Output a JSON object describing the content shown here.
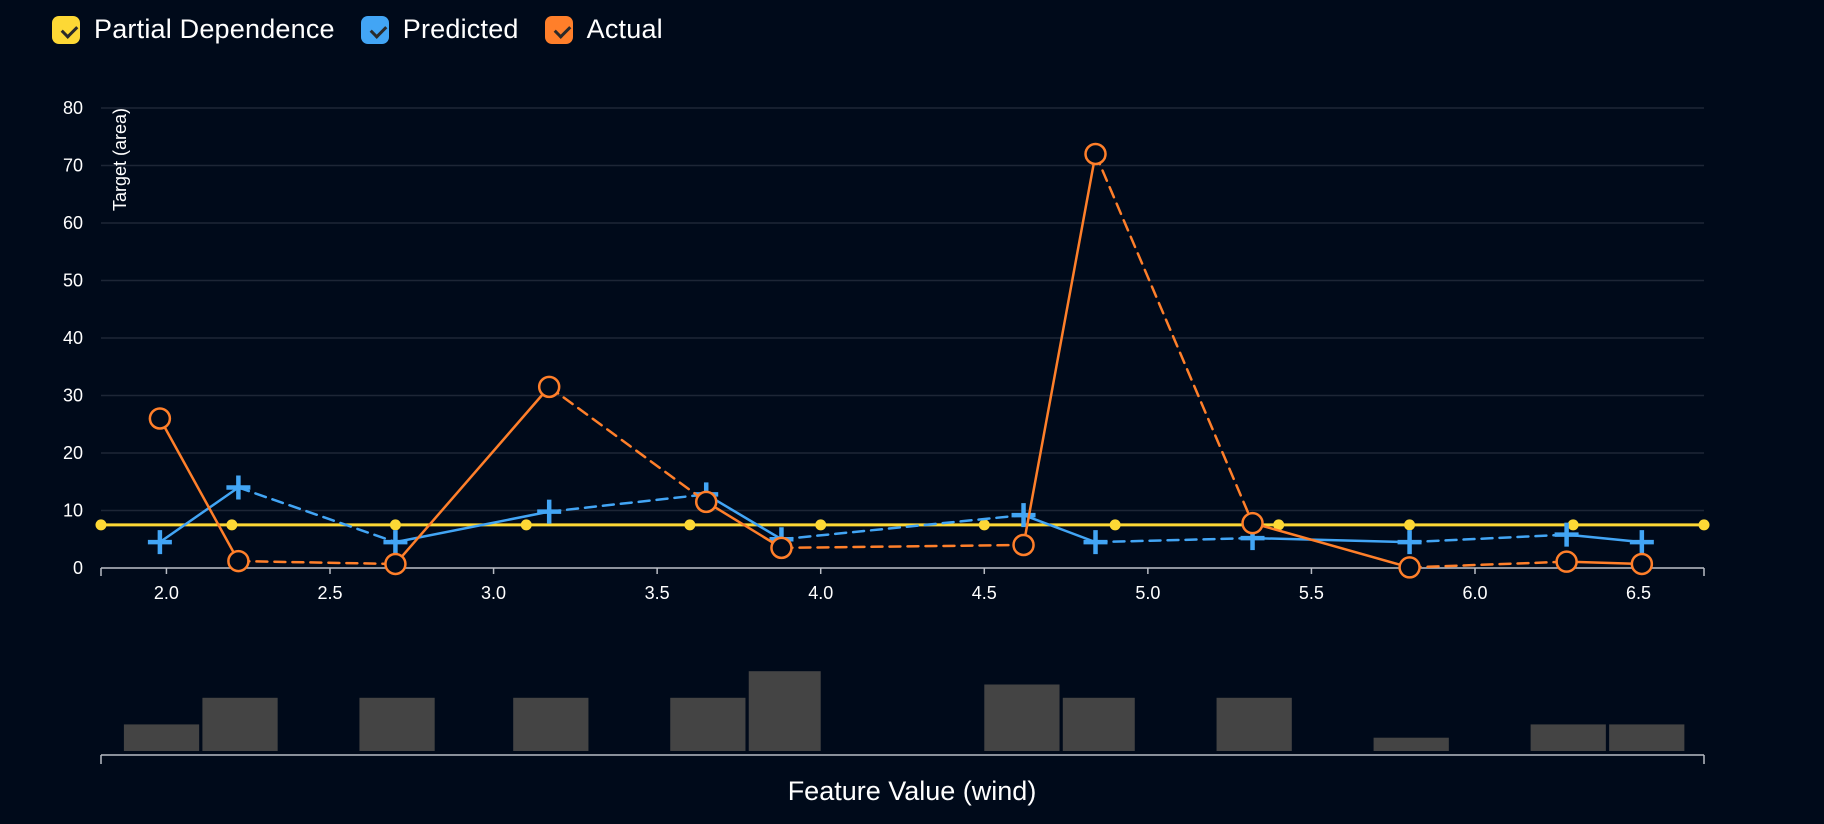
{
  "legend": {
    "items": [
      {
        "label": "Partial Dependence",
        "color": "#fdd835"
      },
      {
        "label": "Predicted",
        "color": "#42a5f5"
      },
      {
        "label": "Actual",
        "color": "#ff7f2a"
      }
    ]
  },
  "chart_data": {
    "type": "line",
    "xlabel": "Feature Value (wind)",
    "ylabel": "Target (area)",
    "xlim": [
      1.8,
      6.7
    ],
    "ylim": [
      0,
      80
    ],
    "x_ticks": [
      "2.0",
      "2.5",
      "3.0",
      "3.5",
      "4.0",
      "4.5",
      "5.0",
      "5.5",
      "6.0",
      "6.5"
    ],
    "y_ticks": [
      "0",
      "10",
      "20",
      "30",
      "40",
      "50",
      "60",
      "70",
      "80"
    ],
    "grid": "horizontal",
    "legend_position": "top-left",
    "series": [
      {
        "name": "Partial Dependence",
        "color": "#fdd835",
        "marker": "dot",
        "x": [
          1.8,
          2.2,
          2.7,
          3.1,
          3.6,
          4.0,
          4.5,
          4.9,
          5.4,
          5.8,
          6.3,
          6.7
        ],
        "y": [
          7.5,
          7.5,
          7.5,
          7.5,
          7.5,
          7.5,
          7.5,
          7.5,
          7.5,
          7.5,
          7.5,
          7.5
        ]
      },
      {
        "name": "Predicted",
        "color": "#42a5f5",
        "marker": "cross",
        "x": [
          1.98,
          2.22,
          2.7,
          3.17,
          3.65,
          3.88,
          4.62,
          4.84,
          5.32,
          5.8,
          6.28,
          6.51
        ],
        "y": [
          4.5,
          14.0,
          4.5,
          9.8,
          12.8,
          5.0,
          9.2,
          4.5,
          5.2,
          4.5,
          5.8,
          4.5
        ]
      },
      {
        "name": "Actual",
        "color": "#ff7f2a",
        "marker": "circle",
        "x": [
          1.98,
          2.22,
          2.7,
          3.17,
          3.65,
          3.88,
          4.62,
          4.84,
          5.32,
          5.8,
          6.28,
          6.51
        ],
        "y": [
          26.0,
          1.2,
          0.7,
          31.5,
          11.5,
          3.5,
          4.0,
          72.0,
          7.8,
          0.1,
          1.1,
          0.7
        ]
      }
    ],
    "histogram": {
      "color": "#444444",
      "bins": [
        {
          "x0": 1.87,
          "x1": 2.1,
          "count": 2
        },
        {
          "x0": 2.11,
          "x1": 2.34,
          "count": 4
        },
        {
          "x0": 2.59,
          "x1": 2.82,
          "count": 4
        },
        {
          "x0": 3.06,
          "x1": 3.29,
          "count": 4
        },
        {
          "x0": 3.54,
          "x1": 3.77,
          "count": 4
        },
        {
          "x0": 3.78,
          "x1": 4.0,
          "count": 6
        },
        {
          "x0": 4.5,
          "x1": 4.73,
          "count": 5
        },
        {
          "x0": 4.74,
          "x1": 4.96,
          "count": 4
        },
        {
          "x0": 5.21,
          "x1": 5.44,
          "count": 4
        },
        {
          "x0": 5.69,
          "x1": 5.92,
          "count": 1
        },
        {
          "x0": 6.17,
          "x1": 6.4,
          "count": 2
        },
        {
          "x0": 6.41,
          "x1": 6.64,
          "count": 2
        }
      ]
    }
  }
}
